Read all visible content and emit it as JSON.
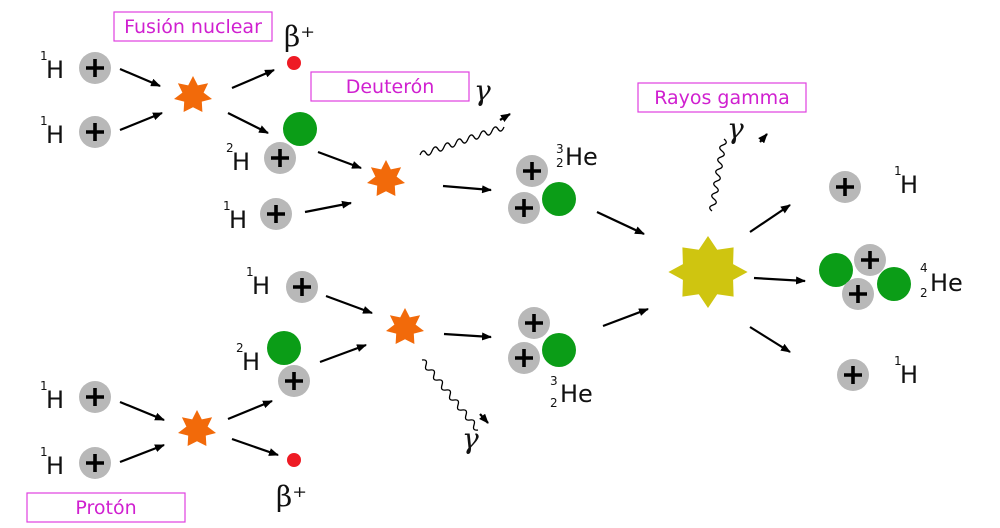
{
  "labels": {
    "fusion": "Fusión nuclear",
    "deuteron": "Deuterón",
    "gamma_rays": "Rayos gamma",
    "proton": "Protón"
  },
  "particles": {
    "hydrogen1": {
      "mass": "1",
      "symbol": "H"
    },
    "deuterium": {
      "mass": "2",
      "symbol": "H"
    },
    "helium3": {
      "mass": "3",
      "atomic": "2",
      "symbol": "He"
    },
    "helium4": {
      "mass": "4",
      "atomic": "2",
      "symbol": "He"
    },
    "positron": "β⁺",
    "gamma": "γ"
  },
  "colors": {
    "proton": "#b8b8b8",
    "neutron": "#0b9d17",
    "positron": "#ee1b24",
    "small_fusion_burst": "#f26a0a",
    "large_fusion_burst": "#cfc510",
    "label_border": "#e040e0",
    "label_text": "#d020d0"
  },
  "icons": {
    "proton": "plus-in-grey-circle",
    "neutron": "green-circle",
    "positron": "red-dot",
    "fusion": "starburst",
    "gamma_photon": "wavy-arrow"
  }
}
